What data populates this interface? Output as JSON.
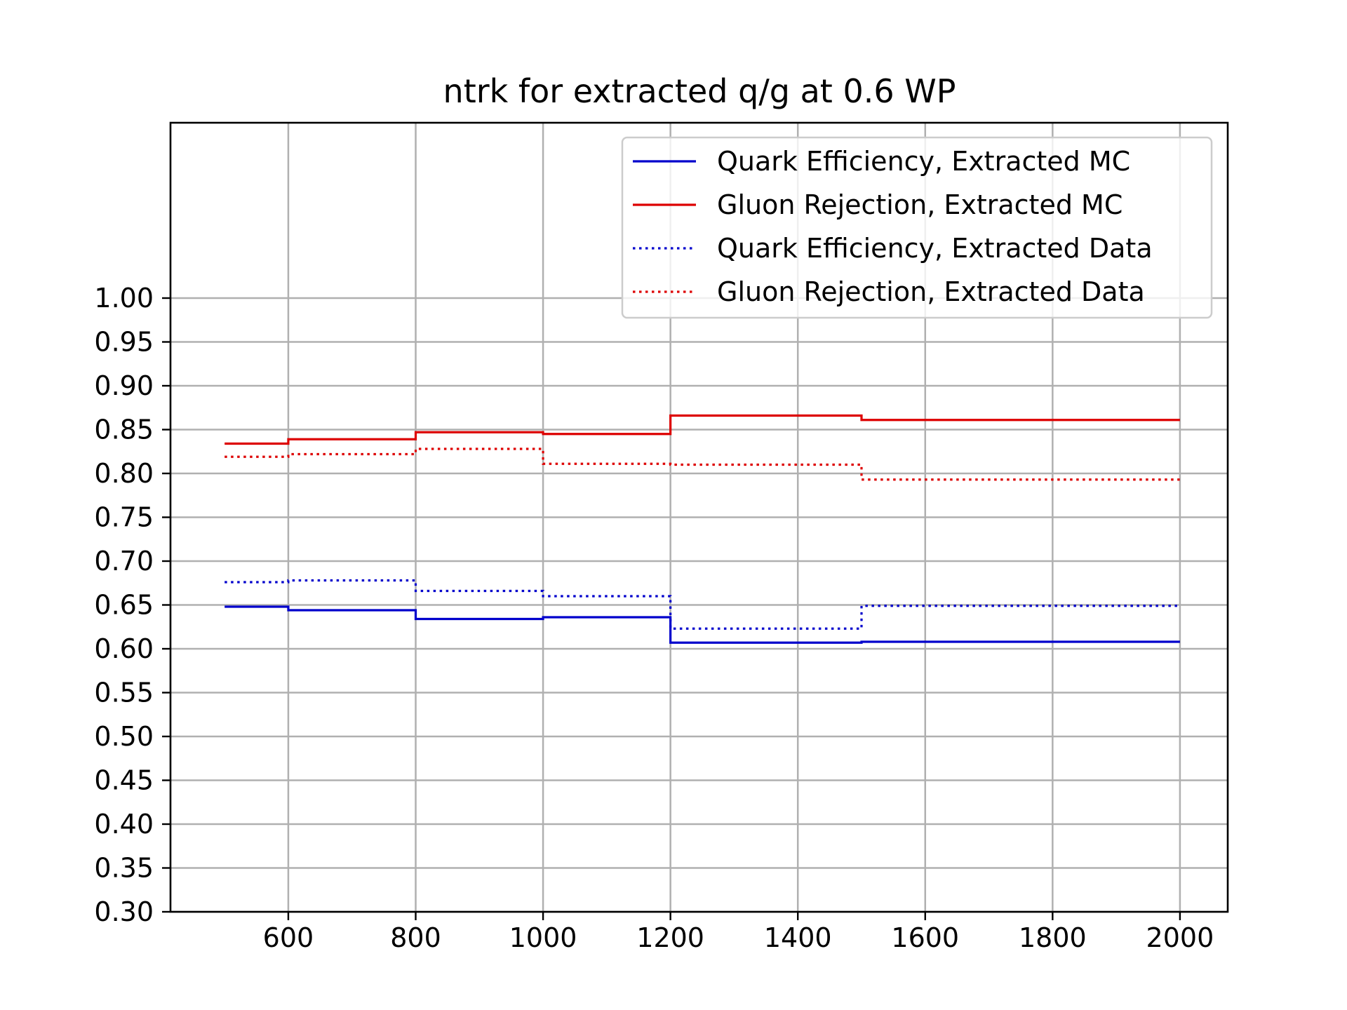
{
  "chart_data": {
    "type": "line",
    "drawstyle": "steps-post",
    "title": "ntrk for extracted q/g at 0.6 WP",
    "xlabel": "",
    "ylabel": "",
    "xlim": [
      415,
      2075
    ],
    "ylim": [
      0.3,
      1.2
    ],
    "grid": true,
    "legend_position": "top-right",
    "x_ticks": [
      600,
      800,
      1000,
      1200,
      1400,
      1600,
      1800,
      2000
    ],
    "x_tick_labels": [
      "600",
      "800",
      "1000",
      "1200",
      "1400",
      "1600",
      "1800",
      "2000"
    ],
    "y_ticks": [
      0.3,
      0.35,
      0.4,
      0.45,
      0.5,
      0.55,
      0.6,
      0.65,
      0.7,
      0.75,
      0.8,
      0.85,
      0.9,
      0.95,
      1.0
    ],
    "y_tick_labels": [
      "0.30",
      "0.35",
      "0.40",
      "0.45",
      "0.50",
      "0.55",
      "0.60",
      "0.65",
      "0.70",
      "0.75",
      "0.80",
      "0.85",
      "0.90",
      "0.95",
      "1.00"
    ],
    "bin_edges": [
      500,
      600,
      800,
      1000,
      1200,
      1500,
      2000
    ],
    "series": [
      {
        "name": "Quark Efficiency, Extracted MC",
        "color": "#0000cc",
        "linestyle": "solid",
        "values": [
          0.648,
          0.644,
          0.634,
          0.636,
          0.607,
          0.608
        ]
      },
      {
        "name": "Gluon Rejection, Extracted MC",
        "color": "#dd0000",
        "linestyle": "solid",
        "values": [
          0.834,
          0.839,
          0.847,
          0.845,
          0.866,
          0.861
        ]
      },
      {
        "name": "Quark Efficiency, Extracted Data",
        "color": "#0000cc",
        "linestyle": "dotted",
        "values": [
          0.676,
          0.678,
          0.666,
          0.66,
          0.623,
          0.649
        ]
      },
      {
        "name": "Gluon Rejection, Extracted Data",
        "color": "#dd0000",
        "linestyle": "dotted",
        "values": [
          0.819,
          0.822,
          0.828,
          0.811,
          0.81,
          0.793
        ]
      }
    ]
  }
}
